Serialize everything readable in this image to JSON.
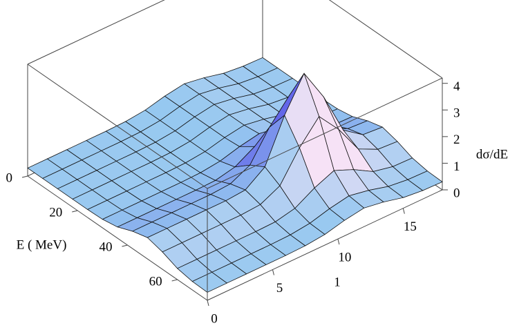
{
  "chart_data": {
    "type": "surface",
    "xlabel": "E ( MeV)",
    "ylabel": "1",
    "zlabel": "dσ/dE",
    "x": [
      0,
      6,
      12,
      18,
      24,
      30,
      36,
      42,
      48,
      54,
      60,
      66,
      72
    ],
    "y": [
      0,
      1.5,
      3,
      4.5,
      6,
      7.5,
      9,
      10.5,
      12,
      13.5,
      15,
      16.5,
      18
    ],
    "z": [
      [
        0.3,
        0.3,
        0.3,
        0.3,
        0.3,
        0.32,
        0.4,
        0.58,
        0.7,
        0.58,
        0.4,
        0.32,
        0.3
      ],
      [
        0.3,
        0.3,
        0.3,
        0.3,
        0.3,
        0.32,
        0.4,
        0.58,
        0.7,
        0.58,
        0.4,
        0.32,
        0.3
      ],
      [
        0.3,
        0.3,
        0.3,
        0.3,
        0.3,
        0.32,
        0.4,
        0.58,
        0.7,
        0.58,
        0.4,
        0.32,
        0.3
      ],
      [
        0.3,
        0.3,
        0.3,
        0.3,
        0.3,
        0.32,
        0.4,
        0.58,
        0.7,
        0.58,
        0.4,
        0.32,
        0.3
      ],
      [
        0.3,
        0.3,
        0.3,
        0.3,
        0.3,
        0.32,
        0.4,
        0.58,
        0.7,
        0.58,
        0.4,
        0.32,
        0.3
      ],
      [
        0.32,
        0.32,
        0.32,
        0.32,
        0.32,
        0.34,
        0.43,
        0.63,
        0.77,
        0.63,
        0.43,
        0.34,
        0.32
      ],
      [
        0.42,
        0.42,
        0.42,
        0.42,
        0.42,
        0.44,
        0.6,
        1.02,
        1.33,
        1.02,
        0.6,
        0.44,
        0.42
      ],
      [
        0.65,
        0.65,
        0.65,
        0.65,
        0.65,
        0.7,
        1.06,
        2.14,
        2.97,
        2.14,
        1.06,
        0.7,
        0.65
      ],
      [
        0.8,
        0.8,
        0.8,
        0.8,
        0.8,
        0.86,
        1.38,
        2.97,
        4.2,
        2.97,
        1.38,
        0.86,
        0.8
      ],
      [
        0.65,
        0.65,
        0.65,
        0.65,
        0.65,
        0.7,
        1.06,
        2.14,
        2.97,
        2.14,
        1.06,
        0.7,
        0.65
      ],
      [
        0.42,
        0.42,
        0.42,
        0.42,
        0.42,
        0.44,
        0.6,
        1.02,
        1.33,
        1.02,
        0.6,
        0.44,
        0.42
      ],
      [
        0.32,
        0.32,
        0.32,
        0.32,
        0.32,
        0.34,
        0.43,
        0.63,
        0.77,
        0.63,
        0.43,
        0.34,
        0.32
      ],
      [
        0.3,
        0.3,
        0.3,
        0.3,
        0.3,
        0.32,
        0.4,
        0.58,
        0.7,
        0.58,
        0.4,
        0.32,
        0.3
      ]
    ],
    "xlim": [
      0,
      72
    ],
    "ylim": [
      0,
      18
    ],
    "zlim": [
      0,
      4.2
    ],
    "xticks": [
      0,
      20,
      40,
      60
    ],
    "yticks": [
      0,
      5,
      10,
      15
    ],
    "zticks": [
      0,
      1,
      2,
      3,
      4
    ],
    "color": "#96c8f0"
  }
}
